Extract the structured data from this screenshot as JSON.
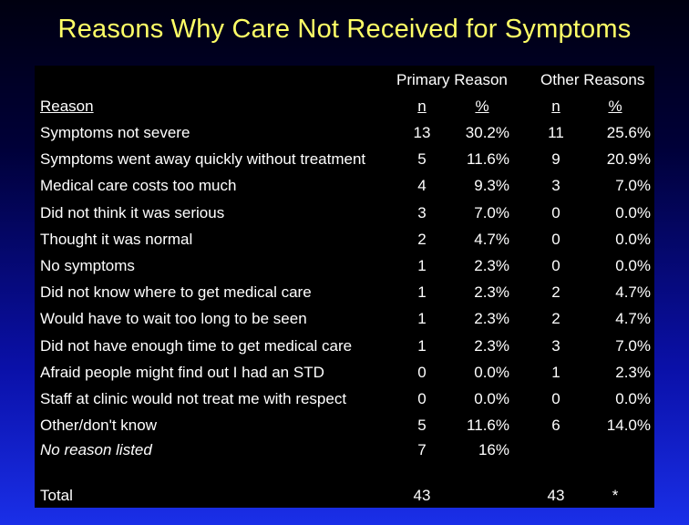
{
  "title": "Reasons Why Care Not Received for Symptoms",
  "table": {
    "group_headers": {
      "primary": "Primary Reason",
      "other": "Other Reasons"
    },
    "col_headers": {
      "reason": "Reason",
      "n1": "n",
      "p1": "%",
      "n2": "n",
      "p2": "%"
    },
    "rows": [
      {
        "reason": "Symptoms not severe",
        "n1": "13",
        "p1": "30.2%",
        "n2": "11",
        "p2": "25.6%"
      },
      {
        "reason": "Symptoms went away quickly without treatment",
        "n1": "5",
        "p1": "11.6%",
        "n2": "9",
        "p2": "20.9%"
      },
      {
        "reason": "Medical care costs too much",
        "n1": "4",
        "p1": "9.3%",
        "n2": "3",
        "p2": "7.0%"
      },
      {
        "reason": "Did not think it was serious",
        "n1": "3",
        "p1": "7.0%",
        "n2": "0",
        "p2": "0.0%"
      },
      {
        "reason": "Thought it was normal",
        "n1": "2",
        "p1": "4.7%",
        "n2": "0",
        "p2": "0.0%"
      },
      {
        "reason": "No symptoms",
        "n1": "1",
        "p1": "2.3%",
        "n2": "0",
        "p2": "0.0%"
      },
      {
        "reason": "Did not know where to get medical care",
        "n1": "1",
        "p1": "2.3%",
        "n2": "2",
        "p2": "4.7%"
      },
      {
        "reason": "Would have to wait too long to be seen",
        "n1": "1",
        "p1": "2.3%",
        "n2": "2",
        "p2": "4.7%"
      },
      {
        "reason": "Did not have enough time to get medical care",
        "n1": "1",
        "p1": "2.3%",
        "n2": "3",
        "p2": "7.0%"
      },
      {
        "reason": "Afraid people might find out I had an STD",
        "n1": "0",
        "p1": "0.0%",
        "n2": "1",
        "p2": "2.3%"
      },
      {
        "reason": "Staff at clinic would not treat me with respect",
        "n1": "0",
        "p1": "0.0%",
        "n2": "0",
        "p2": "0.0%"
      },
      {
        "reason": "Other/don't know",
        "n1": "5",
        "p1": "11.6%",
        "n2": "6",
        "p2": "14.0%"
      }
    ],
    "no_reason": {
      "reason": "No reason listed",
      "n1": "7",
      "p1": "16%"
    },
    "total": {
      "label": "Total",
      "n1": "43",
      "n2": "43",
      "p2": "*"
    }
  }
}
